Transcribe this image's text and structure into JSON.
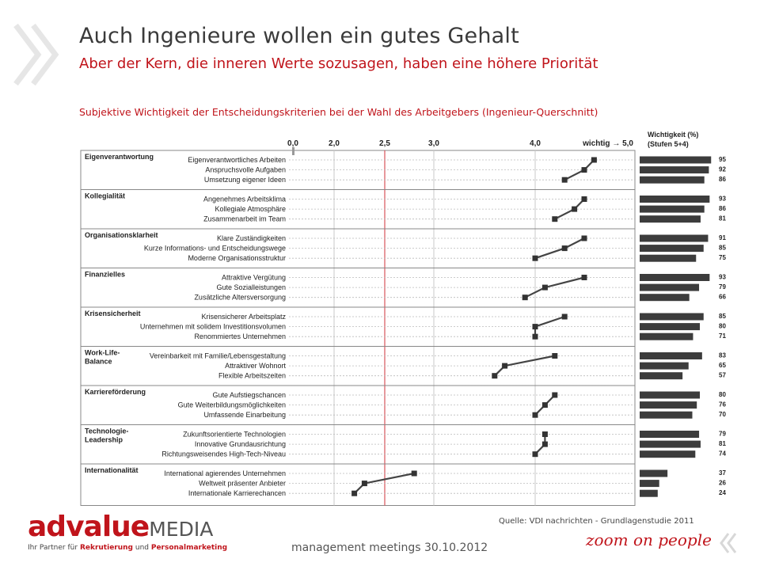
{
  "slide": {
    "title": "Auch Ingenieure wollen ein gutes Gehalt",
    "subtitle": "Aber der Kern, die inneren Werte sozusagen, haben eine höhere Priorität",
    "caption": "Subjektive Wichtigkeit der Entscheidungskriterien bei der Wahl des Arbeitgebers (Ingenieur-Querschnitt)",
    "source": "Quelle: VDI nachrichten - Grundlagenstudie 2011",
    "footer": "management meetings 30.10.2012",
    "logo_main": "advalue",
    "logo_media": "MEDIA",
    "logo_tagline_parts": [
      "Ihr Partner für ",
      "Rekrutierung",
      " und ",
      "Personalmarketing"
    ],
    "zoom_text": "zoom on people",
    "accent_color": "#c0141b"
  },
  "chart_data": {
    "type": "line",
    "title": "Subjektive Wichtigkeit der Entscheidungskriterien bei der Wahl des Arbeitgebers (Ingenieur-Querschnitt)",
    "x_ticks": [
      "0,0",
      "2,0",
      "2,5",
      "3,0",
      "4,0",
      "wichtig → 5,0"
    ],
    "xlim": [
      0,
      5
    ],
    "bar_header": [
      "Wichtigkeit (%)",
      "(Stufen 5+4)"
    ],
    "bar_max": 100,
    "groups": [
      {
        "name": [
          "Eigenverantwortung"
        ],
        "items": [
          {
            "label": "Eigenverantwortliches Arbeiten",
            "score": 4.6,
            "pct": 95
          },
          {
            "label": "Anspruchsvolle Aufgaben",
            "score": 4.5,
            "pct": 92
          },
          {
            "label": "Umsetzung eigener Ideen",
            "score": 4.3,
            "pct": 86
          }
        ]
      },
      {
        "name": [
          "Kollegialität"
        ],
        "items": [
          {
            "label": "Angenehmes Arbeitsklima",
            "score": 4.5,
            "pct": 93
          },
          {
            "label": "Kollegiale Atmosphäre",
            "score": 4.4,
            "pct": 86
          },
          {
            "label": "Zusammenarbeit im Team",
            "score": 4.2,
            "pct": 81
          }
        ]
      },
      {
        "name": [
          "Organisationsklarheit"
        ],
        "items": [
          {
            "label": "Klare Zuständigkeiten",
            "score": 4.5,
            "pct": 91
          },
          {
            "label": "Kurze Informations- und Entscheidungswege",
            "score": 4.3,
            "pct": 85
          },
          {
            "label": "Moderne Organisationsstruktur",
            "score": 4.0,
            "pct": 75
          }
        ]
      },
      {
        "name": [
          "Finanzielles"
        ],
        "items": [
          {
            "label": "Attraktive Vergütung",
            "score": 4.5,
            "pct": 93
          },
          {
            "label": "Gute Sozialleistungen",
            "score": 4.1,
            "pct": 79
          },
          {
            "label": "Zusätzliche Altersversorgung",
            "score": 3.9,
            "pct": 66
          }
        ]
      },
      {
        "name": [
          "Krisensicherheit"
        ],
        "items": [
          {
            "label": "Krisensicherer Arbeitsplatz",
            "score": 4.3,
            "pct": 85
          },
          {
            "label": "Unternehmen mit solidem Investitionsvolumen",
            "score": 4.0,
            "pct": 80
          },
          {
            "label": "Renommiertes Unternehmen",
            "score": 4.0,
            "pct": 71
          }
        ]
      },
      {
        "name": [
          "Work-Life-",
          "Balance"
        ],
        "items": [
          {
            "label": "Vereinbarkeit mit Familie/Lebensgestaltung",
            "score": 4.2,
            "pct": 83
          },
          {
            "label": "Attraktiver Wohnort",
            "score": 3.7,
            "pct": 65
          },
          {
            "label": "Flexible Arbeitszeiten",
            "score": 3.6,
            "pct": 57
          }
        ]
      },
      {
        "name": [
          "Karriereförderung"
        ],
        "items": [
          {
            "label": "Gute Aufstiegschancen",
            "score": 4.2,
            "pct": 80
          },
          {
            "label": "Gute Weiterbildungsmöglichkeiten",
            "score": 4.1,
            "pct": 76
          },
          {
            "label": "Umfassende Einarbeitung",
            "score": 4.0,
            "pct": 70
          }
        ]
      },
      {
        "name": [
          "Technologie-",
          "Leadership"
        ],
        "items": [
          {
            "label": "Zukunftsorientierte Technologien",
            "score": 4.1,
            "pct": 79
          },
          {
            "label": "Innovative Grundausrichtung",
            "score": 4.1,
            "pct": 81
          },
          {
            "label": "Richtungsweisendes High-Tech-Niveau",
            "score": 4.0,
            "pct": 74
          }
        ]
      },
      {
        "name": [
          "Internationalität"
        ],
        "items": [
          {
            "label": "International agierendes Unternehmen",
            "score": 2.8,
            "pct": 37
          },
          {
            "label": "Weltweit präsenter Anbieter",
            "score": 2.3,
            "pct": 26
          },
          {
            "label": "Internationale Karrierechancen",
            "score": 2.2,
            "pct": 24
          }
        ]
      }
    ]
  }
}
